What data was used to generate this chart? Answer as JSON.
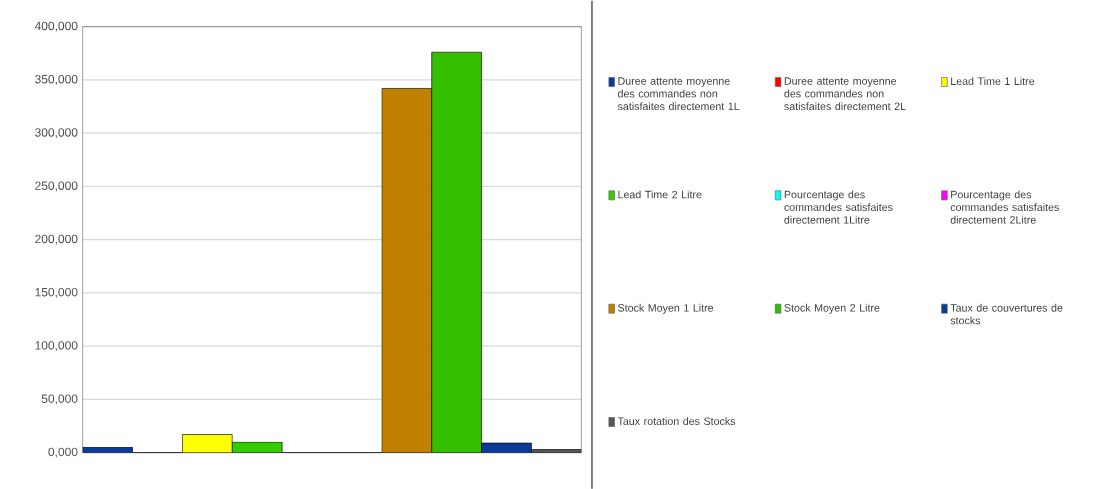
{
  "chart_data": {
    "type": "bar",
    "categories": [
      null
    ],
    "series": [
      {
        "name": "Duree attente moyenne des commandes non satisfaites directement 1L",
        "color": "#0a3a9a",
        "values": [
          5000
        ]
      },
      {
        "name": "Duree attente moyenne des commandes non satisfaites directement 2L",
        "color": "#ff0000",
        "values": [
          0
        ]
      },
      {
        "name": "Lead Time 1 Litre",
        "color": "#ffff00",
        "values": [
          17000
        ]
      },
      {
        "name": "Lead Time 2 Litre",
        "color": "#33cc00",
        "values": [
          10000
        ]
      },
      {
        "name": "Pourcentage des commandes satisfaites directement 1Litre",
        "color": "#00ffff",
        "values": [
          0
        ]
      },
      {
        "name": "Pourcentage des commandes satisfaites directement 2Litre",
        "color": "#ff00ff",
        "values": [
          0
        ]
      },
      {
        "name": "Stock Moyen 1 Litre",
        "color": "#c08000",
        "values": [
          342000
        ]
      },
      {
        "name": "Stock Moyen 2 Litre",
        "color": "#33bf00",
        "values": [
          376000
        ]
      },
      {
        "name": "Taux de couvertures de stocks",
        "color": "#0a3a9a",
        "values": [
          9000
        ]
      },
      {
        "name": "Taux rotation des Stocks",
        "color": "#555555",
        "values": [
          3000
        ]
      }
    ],
    "ylim": [
      0,
      400000
    ],
    "yticks": [
      {
        "value": 0,
        "label": "0,000"
      },
      {
        "value": 50000,
        "label": "50,000"
      },
      {
        "value": 100000,
        "label": "100,000"
      },
      {
        "value": 150000,
        "label": "150,000"
      },
      {
        "value": 200000,
        "label": "200,000"
      },
      {
        "value": 250000,
        "label": "250,000"
      },
      {
        "value": 300000,
        "label": "300,000"
      },
      {
        "value": 350000,
        "label": "350,000"
      },
      {
        "value": 400000,
        "label": "400,000"
      }
    ],
    "grid": "y",
    "legend": "right"
  }
}
